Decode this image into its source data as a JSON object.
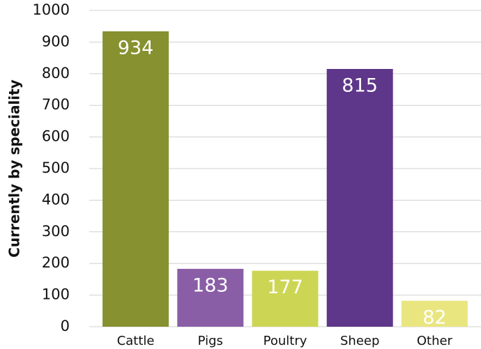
{
  "chart_data": {
    "type": "bar",
    "y_label": "Currently by speciality",
    "categories": [
      "Cattle",
      "Pigs",
      "Poultry",
      "Sheep",
      "Other"
    ],
    "values": [
      934,
      183,
      177,
      815,
      82
    ],
    "colors": [
      "#879130",
      "#8a5ea6",
      "#cdd654",
      "#5e368a",
      "#e9e680"
    ],
    "ylim": [
      0,
      1000
    ],
    "yticks": [
      0,
      100,
      200,
      300,
      400,
      500,
      600,
      700,
      800,
      900,
      1000
    ],
    "grid": true
  }
}
